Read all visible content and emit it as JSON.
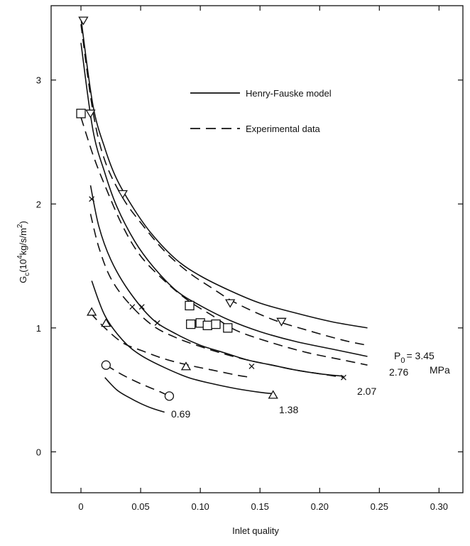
{
  "chart_data": {
    "type": "line",
    "title": "",
    "xlabel": "Inlet quality",
    "ylabel": "G",
    "ylabel_sub": "c",
    "ylabel_units": "(10",
    "ylabel_exp": "4",
    "ylabel_units2": "kg/s/m",
    "ylabel_exp2": "2",
    "ylabel_close": ")",
    "xlim": [
      -0.025,
      0.32
    ],
    "ylim": [
      -0.33,
      3.6
    ],
    "x_ticks": [
      0,
      0.05,
      0.1,
      0.15,
      0.2,
      0.25,
      0.3
    ],
    "x_tick_labels": [
      "0",
      "0.05",
      "0.10",
      "0.15",
      "0.20",
      "0.25",
      "0.30"
    ],
    "y_ticks": [
      0,
      1,
      2,
      3
    ],
    "y_tick_labels": [
      "0",
      "1",
      "2",
      "3"
    ],
    "grid": false,
    "legend": {
      "position": "top-center",
      "entries": [
        {
          "label": "Henry-Fauske model",
          "style": "solid"
        },
        {
          "label": "Experimental data",
          "style": "dashed"
        }
      ]
    },
    "pressure_labels": {
      "p_symbol": "P",
      "p_sub": "0",
      "p_value": "= 3.45",
      "unit": "MPa",
      "p276": "2.76",
      "p207": "2.07",
      "p138": "1.38",
      "p069": "0.69"
    },
    "series": [
      {
        "pressure": "3.45",
        "marker": "triangle-down",
        "model": {
          "x": [
            0,
            0.01,
            0.02,
            0.03,
            0.045,
            0.06,
            0.08,
            0.1,
            0.125,
            0.15,
            0.18,
            0.21,
            0.24
          ],
          "y": [
            3.5,
            2.8,
            2.45,
            2.2,
            1.95,
            1.75,
            1.55,
            1.42,
            1.3,
            1.2,
            1.12,
            1.05,
            1.0
          ]
        },
        "experimental": {
          "x": [
            0,
            0.01,
            0.02,
            0.035,
            0.05,
            0.07,
            0.09,
            0.11,
            0.13,
            0.16,
            0.19,
            0.22,
            0.24
          ],
          "y": [
            3.45,
            2.75,
            2.35,
            2.05,
            1.85,
            1.62,
            1.45,
            1.32,
            1.2,
            1.07,
            0.98,
            0.9,
            0.86
          ]
        },
        "points": {
          "x": [
            0.002,
            0.008,
            0.035,
            0.125,
            0.168
          ],
          "y": [
            3.48,
            2.73,
            2.08,
            1.2,
            1.05
          ]
        }
      },
      {
        "pressure": "2.76",
        "marker": "square",
        "model": {
          "x": [
            0,
            0.01,
            0.02,
            0.03,
            0.045,
            0.06,
            0.08,
            0.1,
            0.125,
            0.15,
            0.18,
            0.21,
            0.24
          ],
          "y": [
            3.3,
            2.6,
            2.25,
            1.98,
            1.7,
            1.5,
            1.3,
            1.18,
            1.06,
            0.97,
            0.89,
            0.83,
            0.77
          ]
        },
        "experimental": {
          "x": [
            0,
            0.01,
            0.02,
            0.035,
            0.05,
            0.07,
            0.09,
            0.11,
            0.13,
            0.16,
            0.19,
            0.22,
            0.24
          ],
          "y": [
            2.7,
            2.4,
            2.15,
            1.82,
            1.58,
            1.38,
            1.22,
            1.1,
            0.98,
            0.88,
            0.8,
            0.74,
            0.7
          ]
        },
        "points": {
          "x": [
            0.0,
            0.091,
            0.092,
            0.1,
            0.106,
            0.113,
            0.123
          ],
          "y": [
            2.73,
            1.18,
            1.03,
            1.04,
            1.02,
            1.03,
            1.0
          ]
        }
      },
      {
        "pressure": "2.07",
        "marker": "x",
        "model": {
          "x": [
            0.008,
            0.015,
            0.025,
            0.04,
            0.06,
            0.08,
            0.1,
            0.12,
            0.14,
            0.16,
            0.18,
            0.2,
            0.22
          ],
          "y": [
            2.15,
            1.82,
            1.55,
            1.3,
            1.07,
            0.95,
            0.86,
            0.8,
            0.74,
            0.7,
            0.66,
            0.63,
            0.61
          ]
        },
        "experimental": {
          "x": [
            0.008,
            0.015,
            0.025,
            0.04,
            0.06,
            0.08,
            0.1,
            0.12,
            0.14,
            0.16,
            0.18,
            0.2,
            0.22
          ],
          "y": [
            1.92,
            1.65,
            1.4,
            1.2,
            1.02,
            0.92,
            0.85,
            0.79,
            0.74,
            0.7,
            0.66,
            0.63,
            0.6
          ]
        },
        "points": {
          "x": [
            0.009,
            0.043,
            0.051,
            0.064,
            0.143,
            0.22
          ],
          "y": [
            2.04,
            1.17,
            1.17,
            1.04,
            0.69,
            0.6
          ]
        }
      },
      {
        "pressure": "1.38",
        "marker": "triangle-up",
        "model": {
          "x": [
            0.009,
            0.02,
            0.035,
            0.05,
            0.07,
            0.09,
            0.11,
            0.13,
            0.15,
            0.161
          ],
          "y": [
            1.38,
            1.1,
            0.9,
            0.78,
            0.68,
            0.6,
            0.55,
            0.51,
            0.48,
            0.47
          ]
        },
        "experimental": {
          "x": [
            0.008,
            0.02,
            0.035,
            0.05,
            0.07,
            0.09,
            0.11,
            0.13,
            0.143
          ],
          "y": [
            1.12,
            1.0,
            0.88,
            0.82,
            0.75,
            0.7,
            0.66,
            0.62,
            0.6
          ]
        },
        "points": {
          "x": [
            0.009,
            0.021,
            0.088,
            0.161
          ],
          "y": [
            1.13,
            1.04,
            0.69,
            0.46
          ]
        }
      },
      {
        "pressure": "0.69",
        "marker": "circle",
        "model": {
          "x": [
            0.02,
            0.03,
            0.04,
            0.05,
            0.06,
            0.07
          ],
          "y": [
            0.6,
            0.5,
            0.44,
            0.39,
            0.35,
            0.32
          ]
        },
        "experimental": {
          "x": [
            0.021,
            0.035,
            0.05,
            0.065,
            0.074
          ],
          "y": [
            0.7,
            0.62,
            0.55,
            0.49,
            0.45
          ]
        },
        "points": {
          "x": [
            0.021,
            0.074
          ],
          "y": [
            0.7,
            0.45
          ]
        }
      }
    ]
  }
}
